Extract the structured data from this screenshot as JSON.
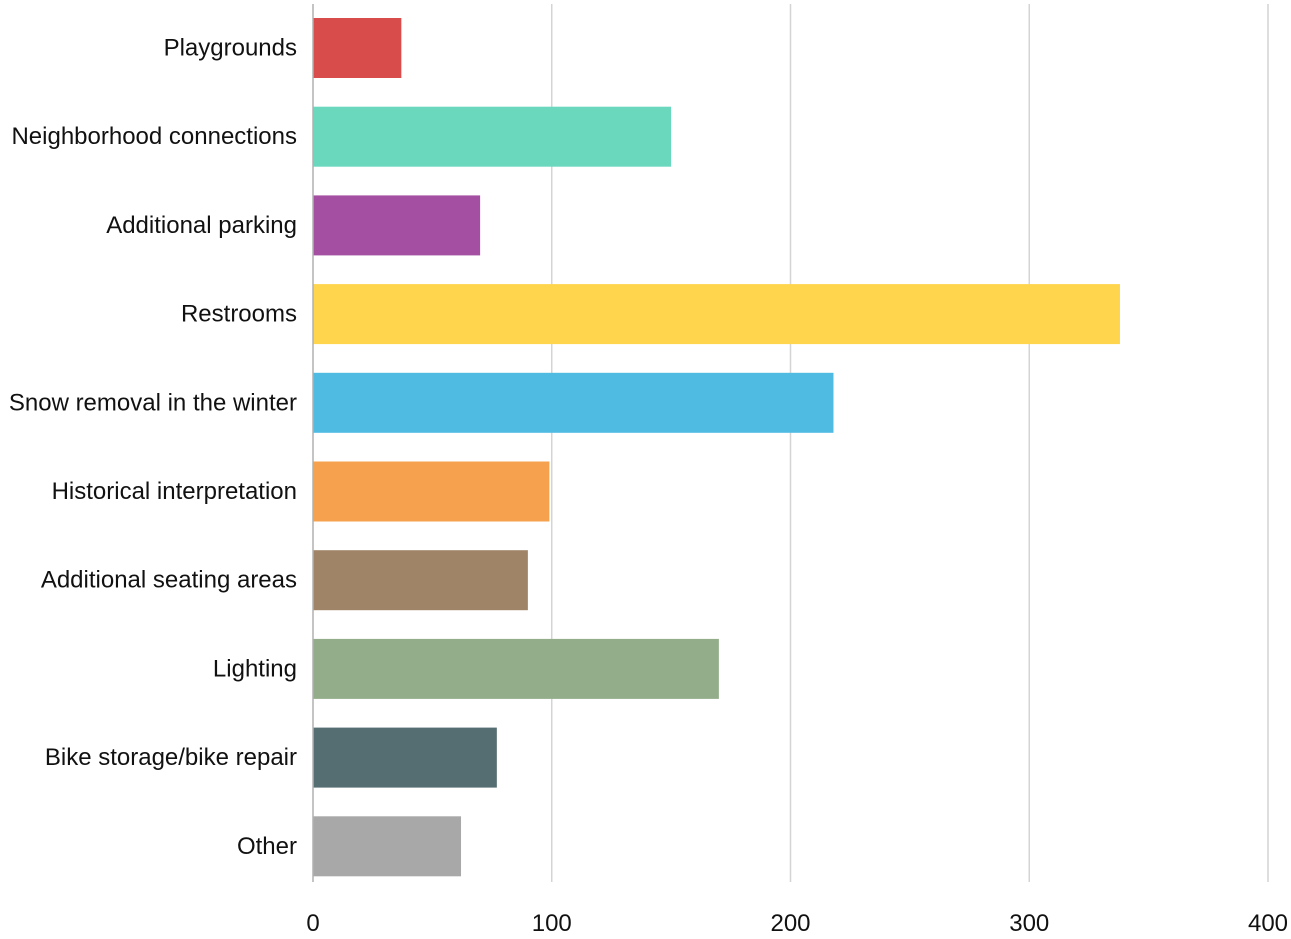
{
  "chart_data": {
    "type": "bar",
    "orientation": "horizontal",
    "title": "",
    "xlabel": "",
    "ylabel": "",
    "categories": [
      "Playgrounds",
      "Neighborhood connections",
      "Additional parking",
      "Restrooms",
      "Snow removal in the winter",
      "Historical interpretation",
      "Additional seating areas",
      "Lighting",
      "Bike storage/bike repair",
      "Other"
    ],
    "values": [
      37,
      150,
      70,
      338,
      218,
      99,
      90,
      170,
      77,
      62
    ],
    "colors": [
      "#d94c4c",
      "#6ad8bd",
      "#a54fa3",
      "#ffd54d",
      "#4fbbe2",
      "#f5a14d",
      "#a08468",
      "#93ad8a",
      "#556e72",
      "#a8a8a8"
    ],
    "xlim": [
      0,
      400
    ],
    "xticks": [
      0,
      100,
      200,
      300,
      400
    ],
    "grid": "vertical",
    "legend": "none"
  }
}
